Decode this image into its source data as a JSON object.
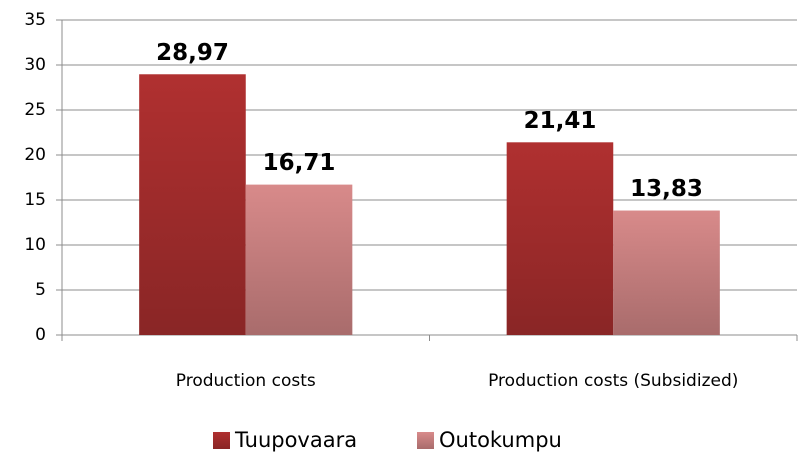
{
  "chart_data": {
    "type": "bar",
    "categories": [
      "Production costs",
      "Production costs (Subsidized)"
    ],
    "series": [
      {
        "name": "Tuupovaara",
        "color": "#b03030",
        "values": [
          28.97,
          21.41
        ],
        "value_labels": [
          "28,97",
          "21,41"
        ]
      },
      {
        "name": "Outokumpu",
        "color": "#d88a8a",
        "values": [
          16.71,
          13.83
        ],
        "value_labels": [
          "16,71",
          "13,83"
        ]
      }
    ],
    "ylim": [
      0,
      35
    ],
    "yticks": [
      0,
      5,
      10,
      15,
      20,
      25,
      30,
      35
    ],
    "grid": true,
    "legend": "bottom"
  }
}
